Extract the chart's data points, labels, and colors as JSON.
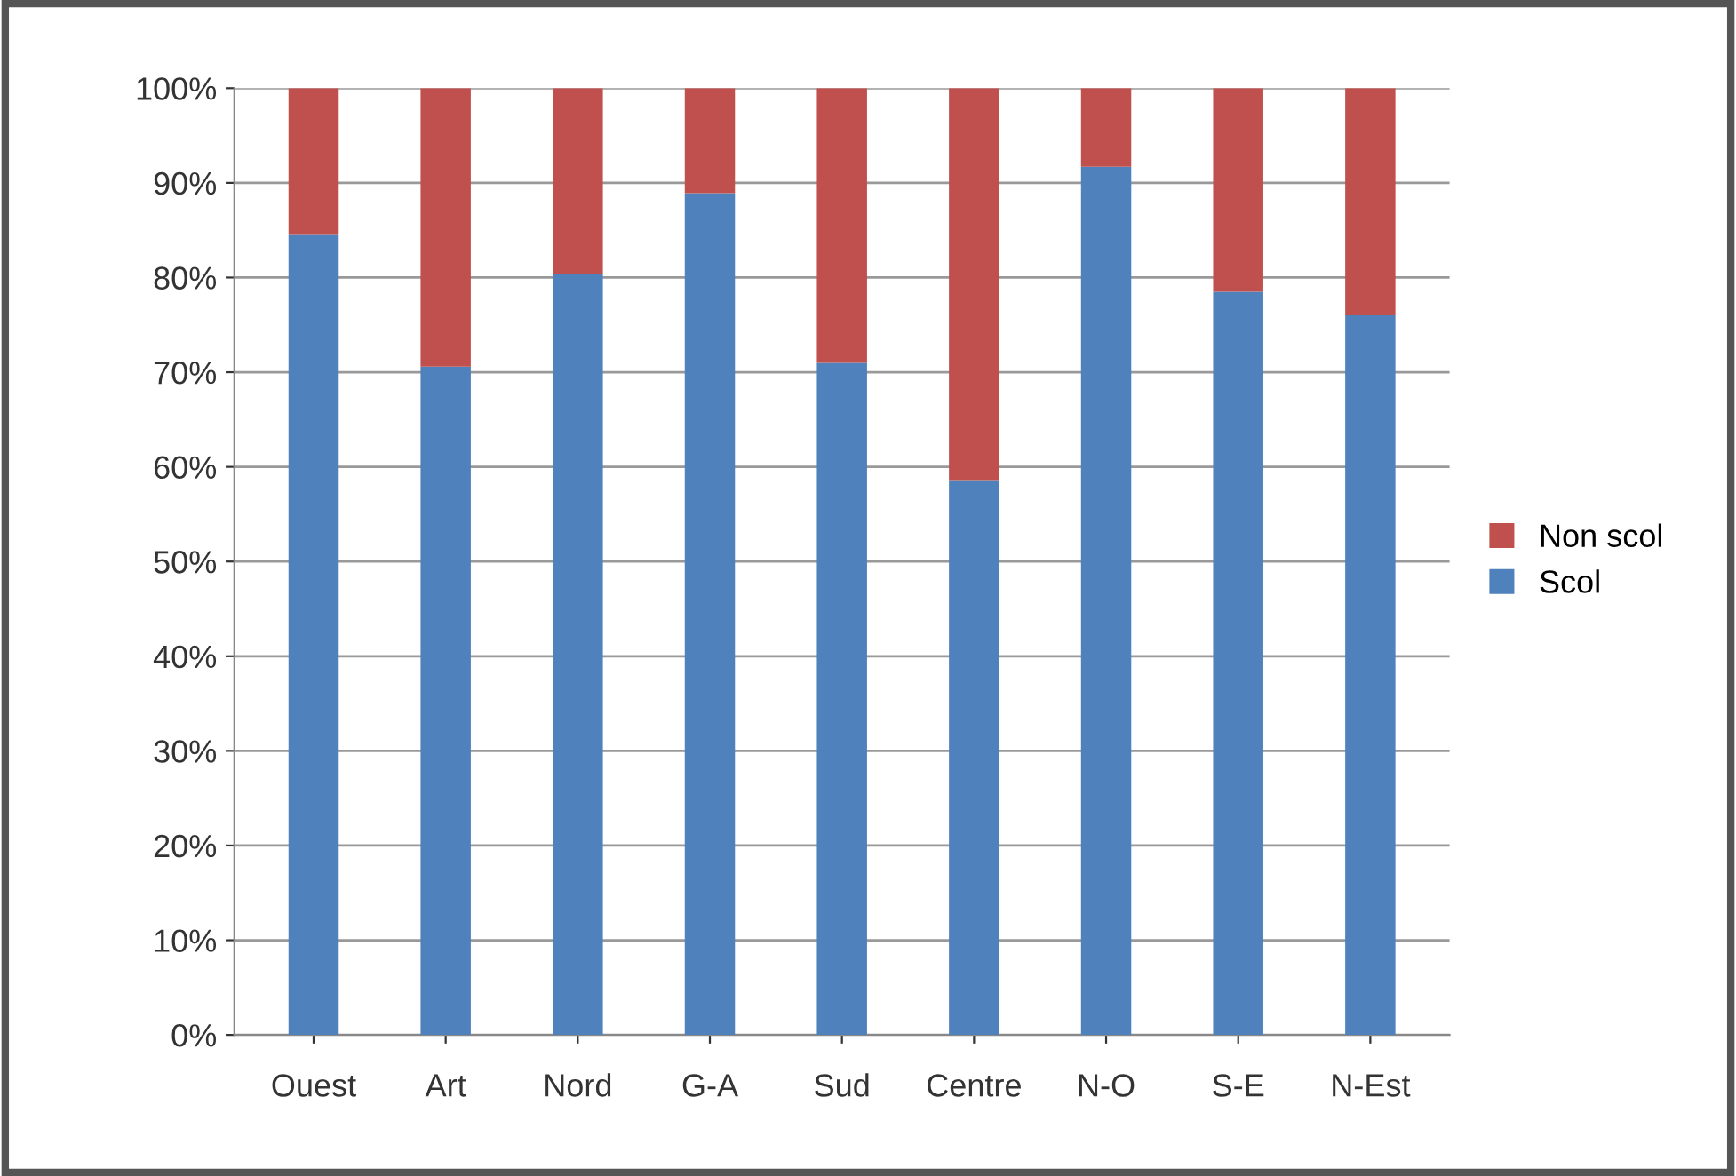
{
  "chart_data": {
    "type": "bar",
    "stacked": true,
    "categories": [
      "Ouest",
      "Art",
      "Nord",
      "G-A",
      "Sud",
      "Centre",
      "N-O",
      "S-E",
      "N-Est"
    ],
    "series": [
      {
        "name": "Scol",
        "color": "#4f81bd",
        "values": [
          84.5,
          70.6,
          80.4,
          88.9,
          71,
          58.6,
          91.7,
          78.5,
          76
        ]
      },
      {
        "name": "Non scol",
        "color": "#c0504d",
        "values": [
          15.5,
          29.4,
          19.6,
          11.1,
          29,
          41.4,
          8.3,
          21.5,
          24
        ]
      }
    ],
    "ylim": [
      0,
      100
    ],
    "yticks": [
      {
        "value": 0,
        "label": "0%"
      },
      {
        "value": 10,
        "label": "10%"
      },
      {
        "value": 20,
        "label": "20%"
      },
      {
        "value": 30,
        "label": "30%"
      },
      {
        "value": 40,
        "label": "40%"
      },
      {
        "value": 50,
        "label": "50%"
      },
      {
        "value": 60,
        "label": "60%"
      },
      {
        "value": 70,
        "label": "70%"
      },
      {
        "value": 80,
        "label": "80%"
      },
      {
        "value": 90,
        "label": "90%"
      },
      {
        "value": 100,
        "label": "100%"
      }
    ],
    "grid": "y",
    "legend": "right"
  }
}
